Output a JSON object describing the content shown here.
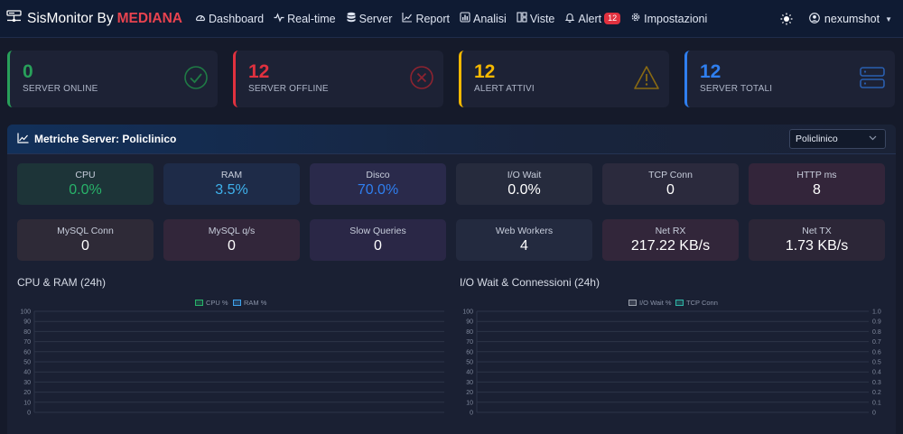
{
  "brand": {
    "name": "SisMonitor By",
    "highlight": "MEDIANA"
  },
  "nav": [
    {
      "label": "Dashboard",
      "icon": "gauge-icon"
    },
    {
      "label": "Real-time",
      "icon": "pulse-icon"
    },
    {
      "label": "Server",
      "icon": "database-icon"
    },
    {
      "label": "Report",
      "icon": "graph-icon"
    },
    {
      "label": "Analisi",
      "icon": "bar-chart-icon"
    },
    {
      "label": "Viste",
      "icon": "layout-icon"
    },
    {
      "label": "Alert",
      "icon": "bell-icon",
      "badge": "12"
    },
    {
      "label": "Impostazioni",
      "icon": "gear-icon"
    }
  ],
  "user": {
    "name": "nexumshot"
  },
  "stats": [
    {
      "value": "0",
      "label": "SERVER ONLINE",
      "color": "#28a05a",
      "icon": "check-circle-icon"
    },
    {
      "value": "12",
      "label": "SERVER OFFLINE",
      "color": "#e0313f",
      "icon": "x-circle-icon"
    },
    {
      "value": "12",
      "label": "ALERT ATTIVI",
      "color": "#f5b800",
      "icon": "warning-icon"
    },
    {
      "value": "12",
      "label": "SERVER TOTALI",
      "color": "#2f7ff0",
      "icon": "server-icon"
    }
  ],
  "panel": {
    "title": "Metriche Server: Policlinico",
    "select_value": "Policlinico"
  },
  "metrics": [
    {
      "label": "CPU",
      "value": "0.0%",
      "value_color": "#28b36a",
      "bg": "#1d3438"
    },
    {
      "label": "RAM",
      "value": "3.5%",
      "value_color": "#3fb3ee",
      "bg": "#1e2b48"
    },
    {
      "label": "Disco",
      "value": "70.0%",
      "value_color": "#2f7ff0",
      "bg": "#2a2a4b"
    },
    {
      "label": "I/O Wait",
      "value": "0.0%",
      "value_color": "#ffffff",
      "bg": "#262b3d"
    },
    {
      "label": "TCP Conn",
      "value": "0",
      "value_color": "#ffffff",
      "bg": "#2b2a3d"
    },
    {
      "label": "HTTP ms",
      "value": "8",
      "value_color": "#ffffff",
      "bg": "#33253a"
    },
    {
      "label": "MySQL Conn",
      "value": "0",
      "value_color": "#ffffff",
      "bg": "#2e2a37"
    },
    {
      "label": "MySQL q/s",
      "value": "0",
      "value_color": "#ffffff",
      "bg": "#32263a"
    },
    {
      "label": "Slow Queries",
      "value": "0",
      "value_color": "#ffffff",
      "bg": "#2a2746"
    },
    {
      "label": "Web Workers",
      "value": "4",
      "value_color": "#ffffff",
      "bg": "#232a3f"
    },
    {
      "label": "Net RX",
      "value": "217.22 KB/s",
      "value_color": "#ffffff",
      "bg": "#32263a"
    },
    {
      "label": "Net TX",
      "value": "1.73 KB/s",
      "value_color": "#ffffff",
      "bg": "#2c2637"
    }
  ],
  "chart_data": [
    {
      "type": "line",
      "title": "CPU & RAM (24h)",
      "series": [
        {
          "name": "CPU %",
          "color": "#28b36a",
          "values": []
        },
        {
          "name": "RAM %",
          "color": "#3fa3ee",
          "values": []
        }
      ],
      "ylim": [
        0,
        100
      ],
      "yticks": [
        "100",
        "90",
        "80",
        "70",
        "60",
        "50",
        "40",
        "30",
        "20",
        "10",
        "0"
      ],
      "grid": true,
      "legend": "top-center"
    },
    {
      "type": "line",
      "title": "I/O Wait & Connessioni (24h)",
      "series": [
        {
          "name": "I/O Wait %",
          "color": "#9aa0ab",
          "values": []
        },
        {
          "name": "TCP Conn",
          "color": "#2fb5a6",
          "values": []
        }
      ],
      "ylim": [
        0,
        100
      ],
      "yticks": [
        "100",
        "90",
        "80",
        "70",
        "60",
        "50",
        "40",
        "30",
        "20",
        "10",
        "0"
      ],
      "y2lim": [
        0,
        1.0
      ],
      "y2ticks": [
        "1.0",
        "0.9",
        "0.8",
        "0.7",
        "0.6",
        "0.5",
        "0.4",
        "0.3",
        "0.2",
        "0.1",
        "0"
      ],
      "grid": true,
      "legend": "top-center"
    }
  ]
}
